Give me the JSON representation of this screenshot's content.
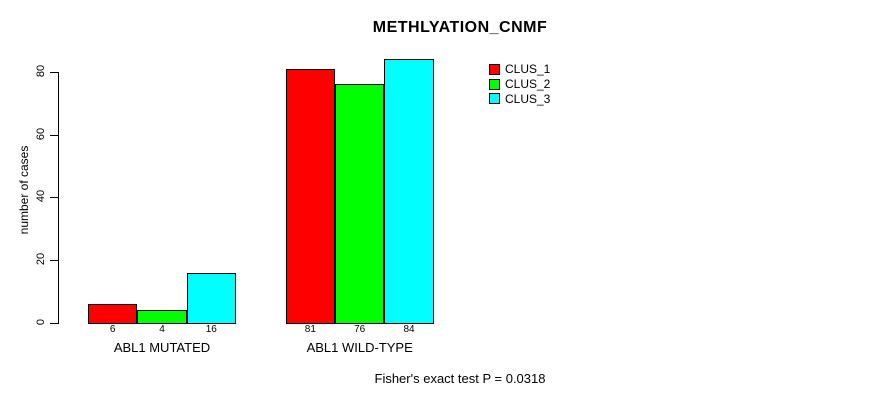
{
  "chart_data": {
    "type": "bar",
    "title": "METHLYATION_CNMF",
    "ylabel": "number of cases",
    "xlabel": "",
    "ylim": [
      0,
      80
    ],
    "yticks": [
      0,
      20,
      40,
      60,
      80
    ],
    "grid": false,
    "legend_position": "right-top",
    "categories": [
      "ABL1 MUTATED",
      "ABL1 WILD-TYPE"
    ],
    "series": [
      {
        "name": "CLUS_1",
        "color": "#ff0000",
        "values": [
          6,
          81
        ]
      },
      {
        "name": "CLUS_2",
        "color": "#00ff00",
        "values": [
          4,
          76
        ]
      },
      {
        "name": "CLUS_3",
        "color": "#00ffff",
        "values": [
          16,
          84
        ]
      }
    ],
    "bar_value_labels": [
      [
        "6",
        "4",
        "16"
      ],
      [
        "81",
        "76",
        "84"
      ]
    ],
    "annotation": "Fisher's exact test P = 0.0318"
  },
  "colors": {
    "background": "#ffffff",
    "axis": "#000000",
    "text": "#000000"
  }
}
